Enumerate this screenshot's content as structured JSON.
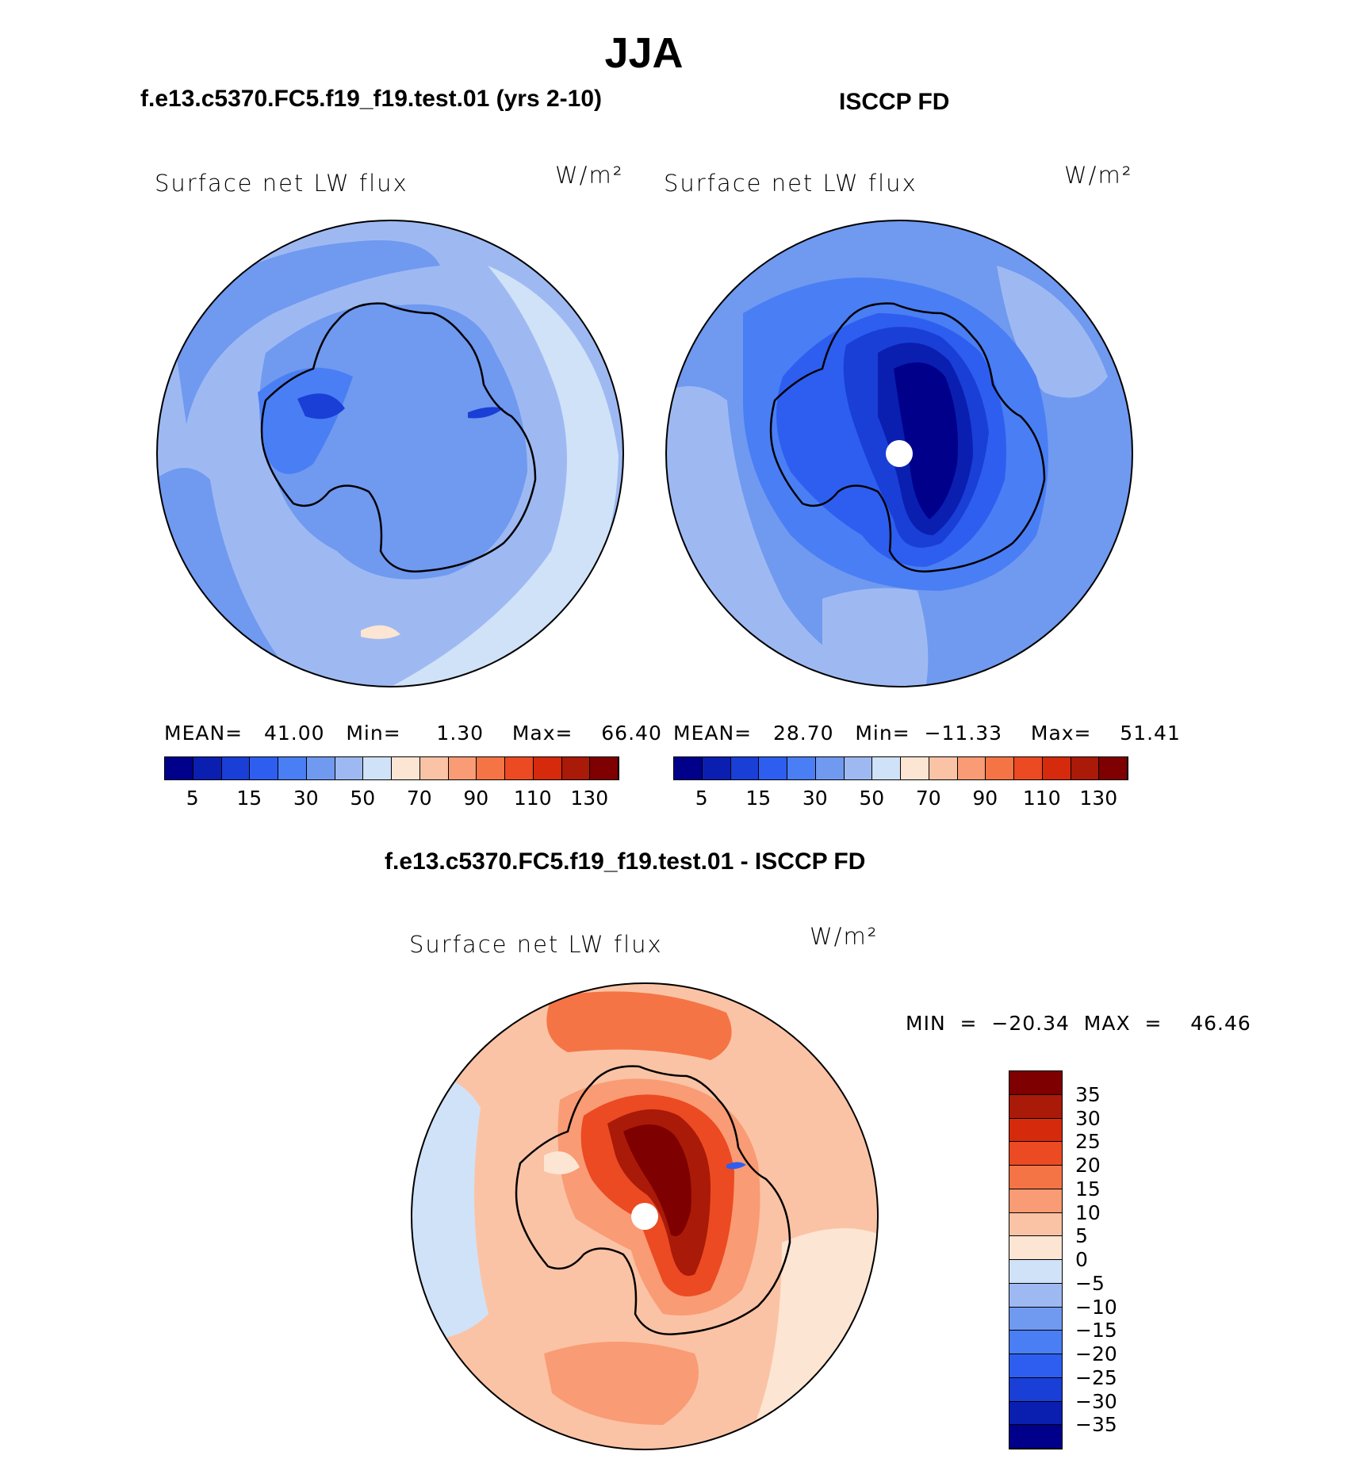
{
  "title": "JJA",
  "panels": [
    {
      "title": "f.e13.c5370.FC5.f19_f19.test.01 (yrs 2-10)",
      "variable": "Surface net LW flux",
      "units": "W/m²",
      "stats": {
        "mean": "41.00",
        "min": "1.30",
        "max": "66.40"
      },
      "stats_text": "MEAN=   41.00   Min=     1.30    Max=    66.40"
    },
    {
      "title": "ISCCP FD",
      "variable": "Surface net LW flux",
      "units": "W/m²",
      "stats": {
        "mean": "28.70",
        "min": "−11.33",
        "max": "51.41"
      },
      "stats_text": "MEAN=   28.70   Min=  −11.33    Max=    51.41"
    },
    {
      "title": "f.e13.c5370.FC5.f19_f19.test.01 - ISCCP FD",
      "variable": "Surface net LW flux",
      "units": "W/m²",
      "stats": {
        "min": "−20.34",
        "max": "46.46"
      },
      "stats_text": "MIN  =  −20.34  MAX  =    46.46"
    }
  ],
  "colorbar_abs": {
    "colors": [
      "#00008b",
      "#0a1fb0",
      "#1a3fd6",
      "#2e5ef0",
      "#4a7ef4",
      "#7099f0",
      "#9eb9f2",
      "#d0e2f8",
      "#fde5d3",
      "#fbc3a5",
      "#f99b74",
      "#f57445",
      "#ec4a22",
      "#d52a0c",
      "#aa1a08",
      "#7e0000"
    ],
    "labels": [
      "5",
      "15",
      "30",
      "50",
      "70",
      "90",
      "110",
      "130"
    ]
  },
  "colorbar_diff": {
    "colors": [
      "#7e0000",
      "#aa1a08",
      "#d52a0c",
      "#ec4a22",
      "#f57445",
      "#f99b74",
      "#fbc3a5",
      "#fde5d3",
      "#d0e2f8",
      "#9eb9f2",
      "#7099f0",
      "#4a7ef4",
      "#2e5ef0",
      "#1a3fd6",
      "#0a1fb0",
      "#00008b"
    ],
    "labels": [
      "35",
      "30",
      "25",
      "20",
      "15",
      "10",
      "5",
      "0",
      "−5",
      "−10",
      "−15",
      "−20",
      "−25",
      "−30",
      "−35"
    ]
  },
  "map_colors": {
    "model": [
      "#9eb9f2",
      "#7099f0",
      "#4a7ef4",
      "#d0e2f8",
      "#1a3fd6"
    ],
    "obs": [
      "#7099f0",
      "#4a7ef4",
      "#2e5ef0",
      "#1a3fd6",
      "#0a1fb0",
      "#9eb9f2"
    ],
    "diff": [
      "#fbc3a5",
      "#f99b74",
      "#f57445",
      "#ec4a22",
      "#d52a0c",
      "#aa1a08",
      "#7e0000",
      "#fde5d3",
      "#d0e2f8"
    ]
  }
}
